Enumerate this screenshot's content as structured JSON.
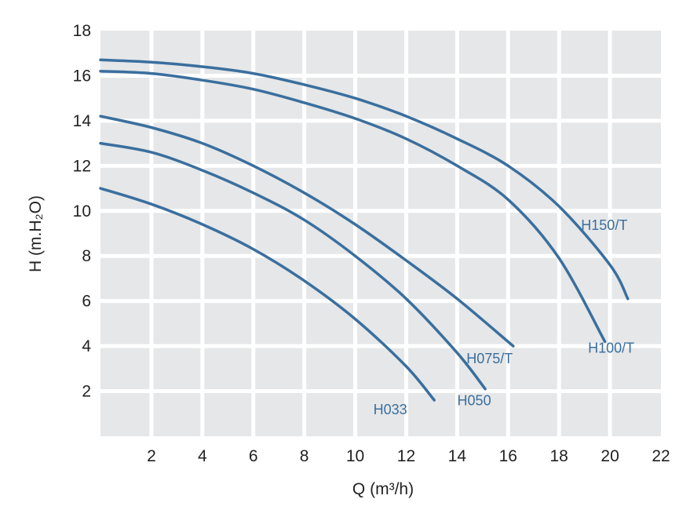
{
  "chart_data": {
    "type": "line",
    "title": "",
    "xlabel": "Q (m³/h)",
    "ylabel": "H (m.H₂O)",
    "xlim": [
      0,
      22
    ],
    "ylim": [
      0,
      18
    ],
    "x_ticks": [
      "2",
      "4",
      "6",
      "8",
      "10",
      "12",
      "14",
      "16",
      "18",
      "20",
      "22"
    ],
    "y_ticks": [
      "2",
      "4",
      "6",
      "8",
      "10",
      "12",
      "14",
      "16",
      "18"
    ],
    "grid": true,
    "colors": {
      "series": "#3a6f9e",
      "plot_bg": "#e6e7e8",
      "grid": "#ffffff",
      "text": "#222222"
    },
    "series": [
      {
        "name": "H033",
        "points": [
          [
            0,
            11.0
          ],
          [
            2,
            10.3
          ],
          [
            4,
            9.4
          ],
          [
            6,
            8.3
          ],
          [
            8,
            6.9
          ],
          [
            10,
            5.2
          ],
          [
            12,
            3.1
          ],
          [
            13.1,
            1.6
          ]
        ]
      },
      {
        "name": "H050",
        "points": [
          [
            0,
            13.0
          ],
          [
            2,
            12.6
          ],
          [
            4,
            11.8
          ],
          [
            6,
            10.8
          ],
          [
            8,
            9.6
          ],
          [
            10,
            8.0
          ],
          [
            12,
            6.1
          ],
          [
            14,
            3.7
          ],
          [
            15.1,
            2.1
          ]
        ]
      },
      {
        "name": "H075/T",
        "points": [
          [
            0,
            14.2
          ],
          [
            2,
            13.7
          ],
          [
            4,
            13.0
          ],
          [
            6,
            12.0
          ],
          [
            8,
            10.8
          ],
          [
            10,
            9.4
          ],
          [
            12,
            7.8
          ],
          [
            14,
            6.1
          ],
          [
            16.2,
            4.0
          ]
        ]
      },
      {
        "name": "H100/T",
        "points": [
          [
            0,
            16.2
          ],
          [
            2,
            16.1
          ],
          [
            4,
            15.8
          ],
          [
            6,
            15.4
          ],
          [
            8,
            14.8
          ],
          [
            10,
            14.1
          ],
          [
            12,
            13.2
          ],
          [
            14,
            12.0
          ],
          [
            16,
            10.5
          ],
          [
            18,
            7.9
          ],
          [
            19.8,
            4.2
          ]
        ]
      },
      {
        "name": "H150/T",
        "points": [
          [
            0,
            16.7
          ],
          [
            2,
            16.6
          ],
          [
            4,
            16.4
          ],
          [
            6,
            16.1
          ],
          [
            8,
            15.6
          ],
          [
            10,
            15.0
          ],
          [
            12,
            14.2
          ],
          [
            14,
            13.2
          ],
          [
            16,
            12.0
          ],
          [
            18,
            10.2
          ],
          [
            20,
            7.6
          ],
          [
            20.7,
            6.1
          ]
        ]
      }
    ]
  }
}
